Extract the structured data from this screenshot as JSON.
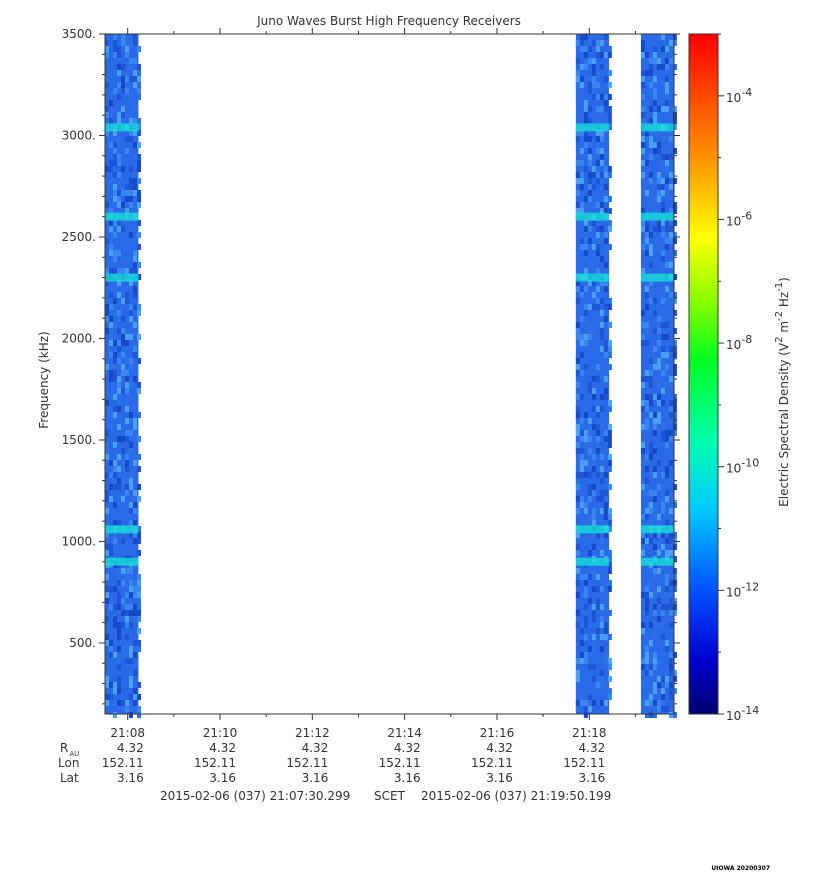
{
  "chart_data": {
    "type": "heatmap",
    "title": "Juno Waves Burst High Frequency Receivers",
    "ylabel": "Frequency (kHz)",
    "ylim": [
      150,
      3500
    ],
    "y_ticks": [
      "500.",
      "1000.",
      "1500.",
      "2000.",
      "2500.",
      "3000.",
      "3500."
    ],
    "y_tick_values": [
      500,
      1000,
      1500,
      2000,
      2500,
      3000,
      3500
    ],
    "x_ticks": [
      "21:08",
      "21:10",
      "21:12",
      "21:14",
      "21:16",
      "21:18"
    ],
    "x_tick_minutes": [
      8,
      10,
      12,
      14,
      16,
      18
    ],
    "xlim_minutes": [
      7.508,
      19.836
    ],
    "data_intervals_minutes": [
      [
        7.508,
        8.233
      ],
      [
        17.71,
        18.43
      ],
      [
        19.12,
        19.836
      ]
    ],
    "colorbar": {
      "label": "Electric Spectral Density (V² m⁻² Hz⁻¹)",
      "scale": "log",
      "range": [
        1e-14,
        0.001
      ],
      "ticks": [
        "-4",
        "-6",
        "-8",
        "-10",
        "-12",
        "-14"
      ],
      "tick_exponents": [
        -4,
        -6,
        -8,
        -10,
        -12,
        -14
      ]
    },
    "colors": {
      "background_level": "#2a6ae8",
      "enhanced_level": "#14e6d8"
    },
    "enhanced_bands_khz": [
      3040,
      2600,
      2300,
      1060,
      900
    ]
  },
  "ephemeris": {
    "labels": {
      "r": "R",
      "r_sub": "AU",
      "lon": "Lon",
      "lat": "Lat"
    },
    "r": [
      "4.32",
      "4.32",
      "4.32",
      "4.32",
      "4.32",
      "4.32"
    ],
    "lon": [
      "152.11",
      "152.11",
      "152.11",
      "152.11",
      "152.11",
      "152.11"
    ],
    "lat": [
      "3.16",
      "3.16",
      "3.16",
      "3.16",
      "3.16",
      "3.16"
    ]
  },
  "scet": {
    "start": "2015-02-06 (037) 21:07:30.299",
    "label": "SCET",
    "end": "2015-02-06 (037) 21:19:50.199"
  },
  "watermark": "UIOWA 20200307"
}
